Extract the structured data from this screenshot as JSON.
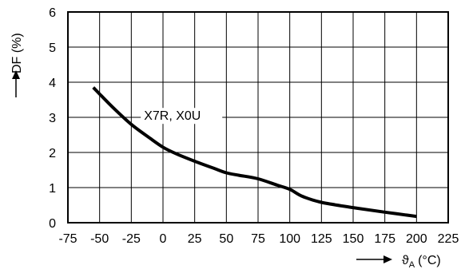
{
  "chart_data": {
    "type": "line",
    "title": "",
    "xlabel": {
      "symbol": "ϑ",
      "subscript": "A",
      "unit": "(°C)"
    },
    "ylabel": "DF (%)",
    "xlim": [
      -75,
      225
    ],
    "ylim": [
      0,
      6
    ],
    "x_ticks": [
      -75,
      -50,
      -25,
      0,
      25,
      50,
      75,
      100,
      125,
      150,
      175,
      200,
      225
    ],
    "y_ticks": [
      0,
      1,
      2,
      3,
      4,
      5,
      6
    ],
    "grid": true,
    "legend": "none",
    "series": [
      {
        "name": "X7R, X0U",
        "x": [
          -55,
          -40,
          -25,
          -10,
          0,
          10,
          25,
          40,
          50,
          60,
          75,
          90,
          100,
          110,
          125,
          150,
          175,
          200
        ],
        "y": [
          3.85,
          3.3,
          2.8,
          2.4,
          2.15,
          1.97,
          1.75,
          1.55,
          1.42,
          1.35,
          1.25,
          1.07,
          0.95,
          0.75,
          0.58,
          0.43,
          0.3,
          0.18
        ]
      }
    ],
    "colors": {
      "line": "#000000",
      "grid": "#000000",
      "background": "#ffffff"
    }
  }
}
